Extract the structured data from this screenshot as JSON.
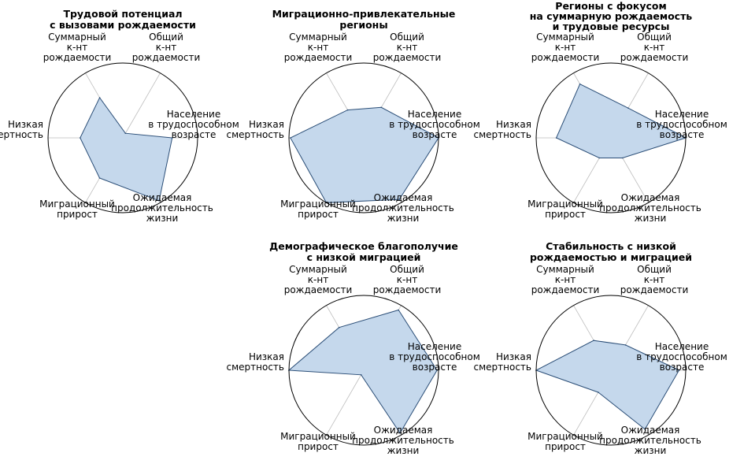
{
  "style": {
    "fill_color": "#c5d8ec",
    "edge_color": "#2b4e77",
    "circle_color": "#000000",
    "spoke_color": "#bdbdbd"
  },
  "chart_data": [
    {
      "type": "radar",
      "title": [
        "Трудовой потенциал",
        "с вызовами рождаемости"
      ],
      "axes": [
        [
          "Население",
          "в трудоспособном",
          "возрасте"
        ],
        [
          "Общий",
          "к-нт",
          "рождаемости"
        ],
        [
          "Суммарный",
          "к-нт",
          "рождаемости"
        ],
        [
          "Низкая",
          "смертность"
        ],
        [
          "Миграционный",
          "прирост"
        ],
        [
          "Ожидаемая",
          "продолжительность",
          "жизни"
        ]
      ],
      "values": [
        0.66,
        0.07,
        0.62,
        0.57,
        0.62,
        0.97
      ],
      "rlim": [
        0,
        1
      ],
      "grid": false
    },
    {
      "type": "radar",
      "title": [
        "Миграционно-привлекательные",
        "регионы"
      ],
      "axes": [
        [
          "Население",
          "в трудоспособном",
          "возрасте"
        ],
        [
          "Общий",
          "к-нт",
          "рождаемости"
        ],
        [
          "Суммарный",
          "к-нт",
          "рождаемости"
        ],
        [
          "Низкая",
          "смертность"
        ],
        [
          "Миграционный",
          "прирост"
        ],
        [
          "Ожидаемая",
          "продолжительность",
          "жизни"
        ]
      ],
      "values": [
        1.0,
        0.47,
        0.43,
        0.98,
        1.0,
        0.95
      ],
      "rlim": [
        0,
        1
      ],
      "grid": false
    },
    {
      "type": "radar",
      "title": [
        "Регионы с фокусом",
        "на суммарную рождаемость",
        "и трудовые ресурсы"
      ],
      "axes": [
        [
          "Население",
          "в трудоспособном",
          "возрасте"
        ],
        [
          "Общий",
          "к-нт",
          "рождаемости"
        ],
        [
          "Суммарный",
          "к-нт",
          "рождаемости"
        ],
        [
          "Низкая",
          "смертность"
        ],
        [
          "Миграционный",
          "прирост"
        ],
        [
          "Ожидаемая",
          "продолжительность",
          "жизни"
        ]
      ],
      "values": [
        1.0,
        0.46,
        0.83,
        0.73,
        0.31,
        0.31
      ],
      "rlim": [
        0,
        1
      ],
      "grid": false
    },
    {
      "type": "radar",
      "title": [
        "Демографическое благополучие",
        "с низкой миграцией"
      ],
      "axes": [
        [
          "Население",
          "в трудоспособном",
          "возрасте"
        ],
        [
          "Общий",
          "к-нт",
          "рождаемости"
        ],
        [
          "Суммарный",
          "к-нт",
          "рождаемости"
        ],
        [
          "Низкая",
          "смертность"
        ],
        [
          "Миграционный",
          "прирост"
        ],
        [
          "Ожидаемая",
          "продолжительность",
          "жизни"
        ]
      ],
      "values": [
        0.98,
        0.93,
        0.66,
        1.0,
        0.07,
        0.97
      ],
      "rlim": [
        0,
        1
      ],
      "grid": false
    },
    {
      "type": "radar",
      "title": [
        "Стабильность с низкой",
        "рождаемостью и миграцией"
      ],
      "axes": [
        [
          "Население",
          "в трудоспособном",
          "возрасте"
        ],
        [
          "Общий",
          "к-нт",
          "рождаемости"
        ],
        [
          "Суммарный",
          "к-нт",
          "рождаемости"
        ],
        [
          "Низкая",
          "смертность"
        ],
        [
          "Миграционный",
          "прирост"
        ],
        [
          "Ожидаемая",
          "продолжительность",
          "жизни"
        ]
      ],
      "values": [
        0.91,
        0.39,
        0.46,
        1.0,
        0.34,
        0.91
      ],
      "rlim": [
        0,
        1
      ],
      "grid": false
    }
  ]
}
